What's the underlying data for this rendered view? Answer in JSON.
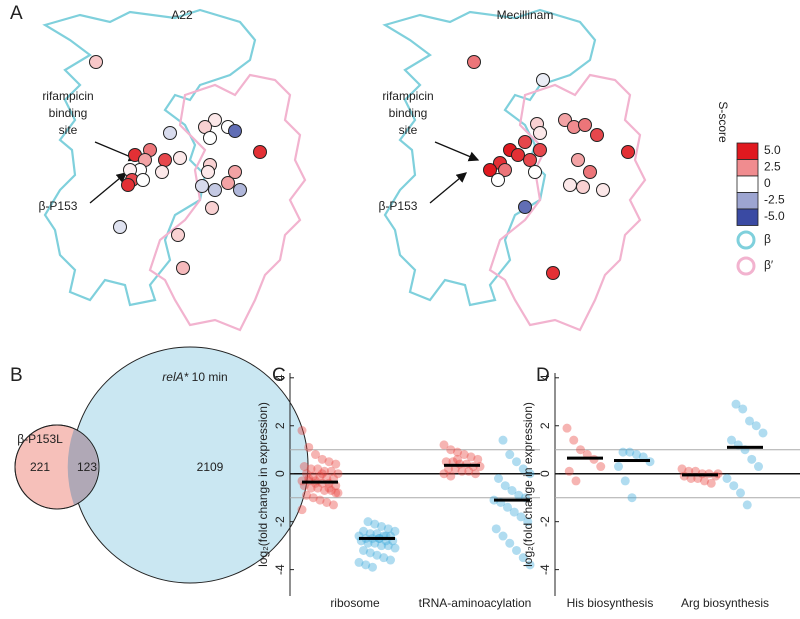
{
  "panel_a": {
    "label": "A",
    "structures": [
      {
        "title": "A22",
        "s_scores": [
          1.2,
          -1,
          0.5,
          1,
          0,
          0,
          -4,
          4.5,
          4.5,
          3,
          4,
          2,
          0,
          0.5,
          0.5,
          0.3,
          4,
          0,
          4.5,
          1,
          0.5,
          2,
          2,
          -1,
          -1.5,
          -2,
          1,
          -0.8,
          1,
          1.5
        ]
      },
      {
        "title": "Mecillinam",
        "s_scores": [
          3,
          -0.5,
          1,
          0.5,
          2,
          2.5,
          3,
          4,
          4.5,
          5,
          4,
          4.5,
          4,
          4.5,
          3,
          4,
          0,
          5,
          0,
          2,
          3,
          0.5,
          1,
          0.5,
          -4,
          4.5
        ]
      }
    ],
    "annotations": {
      "site": [
        "rifampicin",
        "binding",
        "site"
      ],
      "residue": "β-P153"
    },
    "colorbar": {
      "title": "S-score",
      "lim": [
        -5,
        5
      ],
      "ticks": [
        {
          "value": 5,
          "label": "5.0"
        },
        2.5,
        0,
        -2.5,
        {
          "value": -5,
          "label": "-5.0"
        }
      ]
    },
    "legend": [
      {
        "label": "β",
        "color": "#7fd0dc"
      },
      {
        "label": "β′",
        "color": "#f2b3cf"
      }
    ]
  },
  "panel_b": {
    "label": "B",
    "set_a": "β-P153L",
    "set_b": {
      "gene": "relA*",
      "condition": "10 min"
    },
    "counts": {
      "only_a": 221,
      "both": 123,
      "only_b": 2109
    }
  },
  "chart_data": [
    {
      "type": "strip",
      "panel_label": "C",
      "y_label": "log₂(fold change in expression)",
      "categories": [
        "ribosome",
        "tRNA-aminoacylation"
      ],
      "ylim": [
        -5.1,
        4.2
      ],
      "yticks": [
        -4,
        -2,
        0,
        2,
        4
      ],
      "reference_lines": [
        -1,
        1
      ],
      "series": [
        {
          "color": "#e8433f",
          "values": [
            [
              1.8,
              1.1,
              0.8,
              0.6,
              0.5,
              0.4,
              0.3,
              0.2,
              0.2,
              0.1,
              0.1,
              0,
              0,
              -0.1,
              -0.1,
              -0.2,
              -0.2,
              -0.3,
              -0.3,
              -0.3,
              -0.4,
              -0.4,
              -0.5,
              -0.5,
              -0.6,
              -0.6,
              -0.7,
              -0.7,
              -0.8,
              -0.9,
              -1,
              -1.1,
              -1.2,
              -1.3,
              -1.5,
              -0.2,
              -0.4,
              0,
              -0.6,
              -0.8
            ],
            [
              1.2,
              1,
              0.9,
              0.8,
              0.7,
              0.6,
              0.5,
              0.5,
              0.4,
              0.4,
              0.3,
              0.3,
              0.2,
              0.2,
              0.1,
              0.1,
              0,
              0,
              -0.1,
              0.6
            ]
          ],
          "medians": [
            -0.35,
            0.35
          ]
        },
        {
          "color": "#3aa7d9",
          "values": [
            [
              -2,
              -2.1,
              -2.2,
              -2.3,
              -2.4,
              -2.4,
              -2.5,
              -2.5,
              -2.6,
              -2.6,
              -2.6,
              -2.7,
              -2.7,
              -2.7,
              -2.8,
              -2.8,
              -2.8,
              -2.9,
              -2.9,
              -3,
              -3,
              -3.1,
              -3.2,
              -3.3,
              -3.4,
              -3.5,
              -3.6,
              -3.7,
              -3.8,
              -3.9,
              -2.7,
              -2.6
            ],
            [
              1.4,
              0.8,
              0.5,
              0.2,
              0,
              -0.2,
              -0.5,
              -0.7,
              -0.9,
              -1,
              -1.1,
              -1.2,
              -1.4,
              -1.6,
              -1.8,
              -2,
              -2.3,
              -2.6,
              -2.9,
              -3.2,
              -3.5,
              -3.8
            ]
          ],
          "medians": [
            -2.7,
            -1.1
          ]
        }
      ]
    },
    {
      "type": "strip",
      "panel_label": "D",
      "y_label": "log₂(fold change in expression)",
      "categories": [
        "His biosynthesis",
        "Arg biosynthesis"
      ],
      "ylim": [
        -5.1,
        4.2
      ],
      "yticks": [
        -4,
        -2,
        0,
        2,
        4
      ],
      "reference_lines": [
        -1,
        1
      ],
      "series": [
        {
          "color": "#e8433f",
          "values": [
            [
              1.9,
              1.4,
              1,
              0.8,
              0.6,
              0.3,
              0.1,
              -0.3
            ],
            [
              0.2,
              0.1,
              0.1,
              0,
              0,
              -0.1,
              -0.1,
              -0.2,
              -0.2,
              -0.3,
              -0.4,
              0
            ]
          ],
          "medians": [
            0.65,
            -0.05
          ]
        },
        {
          "color": "#3aa7d9",
          "values": [
            [
              0.9,
              0.9,
              0.8,
              0.7,
              0.5,
              0.3,
              -0.3,
              -1
            ],
            [
              2.9,
              2.7,
              2.2,
              2,
              1.7,
              1.4,
              1.2,
              1,
              0.6,
              0.3,
              -0.2,
              -0.5,
              -0.8,
              -1.3
            ]
          ],
          "medians": [
            0.55,
            1.1
          ]
        }
      ]
    }
  ]
}
